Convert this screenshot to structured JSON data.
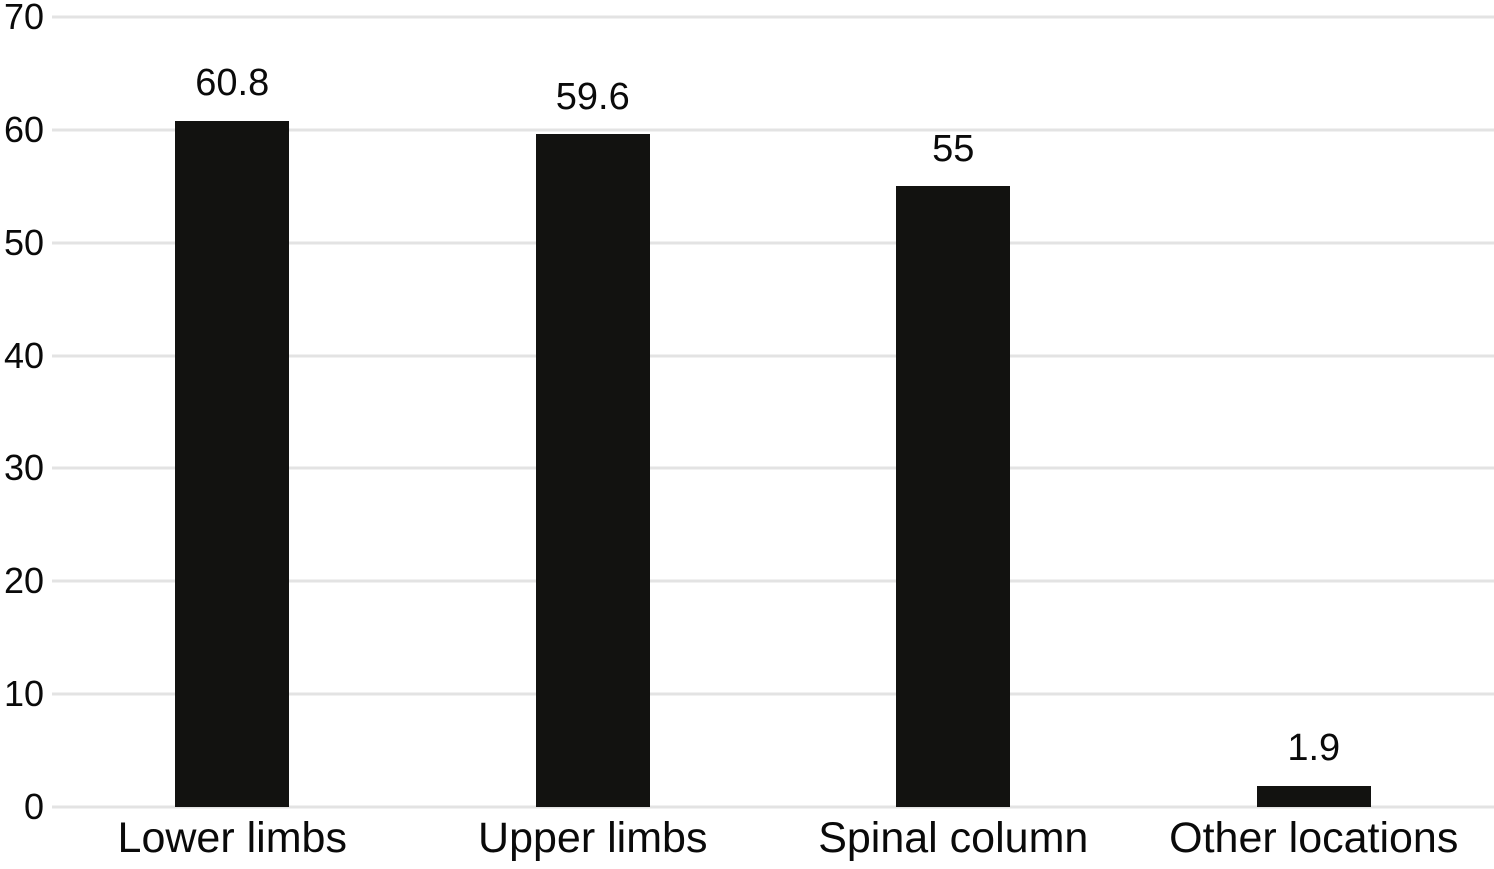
{
  "chart_data": {
    "type": "bar",
    "title": "",
    "xlabel": "",
    "ylabel": "",
    "categories": [
      "Lower limbs",
      "Upper limbs",
      "Spinal column",
      "Other locations"
    ],
    "values": [
      60.8,
      59.6,
      55,
      1.9
    ],
    "value_labels": [
      "60.8",
      "59.6",
      "55",
      "1.9"
    ],
    "y_ticks": [
      0,
      10,
      20,
      30,
      40,
      50,
      60,
      70
    ],
    "ylim": [
      0,
      70
    ],
    "grid": "horizontal",
    "legend": "none",
    "bar_color": "#121210",
    "gridline_color": "#e3e3e3",
    "text_color": "#0a0a0a",
    "background_color": "#ffffff"
  }
}
